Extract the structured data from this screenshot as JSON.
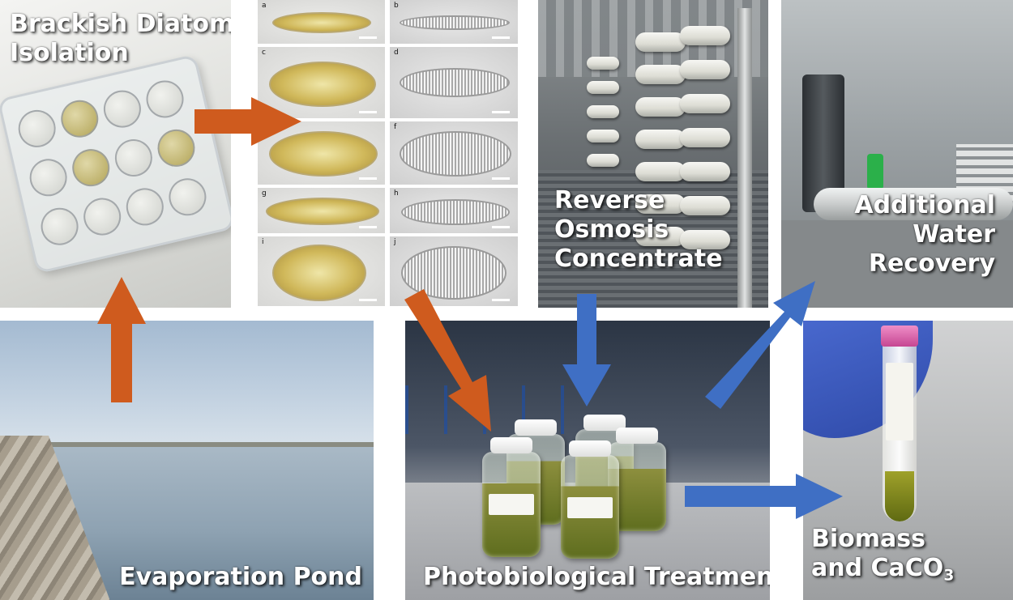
{
  "colors": {
    "orange_arrow": "#CF5B1E",
    "blue_arrow": "#3F6FC4",
    "label_text": "#FFFFFF"
  },
  "panels": {
    "isolation": {
      "line1": "Brackish Diatom",
      "line2": "Isolation"
    },
    "diatom_letters": [
      "a",
      "b",
      "c",
      "d",
      "e",
      "f",
      "g",
      "h",
      "i",
      "j"
    ],
    "ro": {
      "line1": "Reverse",
      "line2": "Osmosis",
      "line3": "Concentrate"
    },
    "recovery": {
      "line1": "Additional",
      "line2": "Water",
      "line3": "Recovery"
    },
    "pond": {
      "label": "Evaporation Pond"
    },
    "photo": {
      "label": "Photobiological Treatment"
    },
    "biomass": {
      "line1": "Biomass",
      "line2_prefix": "and CaCO",
      "line2_sub": "3"
    }
  },
  "arrows": [
    {
      "from": "Evaporation Pond",
      "to": "Brackish Diatom Isolation",
      "color": "orange"
    },
    {
      "from": "Brackish Diatom Isolation",
      "to": "diatom micrographs",
      "color": "orange"
    },
    {
      "from": "diatom micrographs",
      "to": "Photobiological Treatment",
      "color": "orange"
    },
    {
      "from": "Reverse Osmosis Concentrate",
      "to": "Photobiological Treatment",
      "color": "blue"
    },
    {
      "from": "Photobiological Treatment",
      "to": "Additional Water Recovery",
      "color": "blue"
    },
    {
      "from": "Photobiological Treatment",
      "to": "Biomass and CaCO3",
      "color": "blue"
    }
  ]
}
